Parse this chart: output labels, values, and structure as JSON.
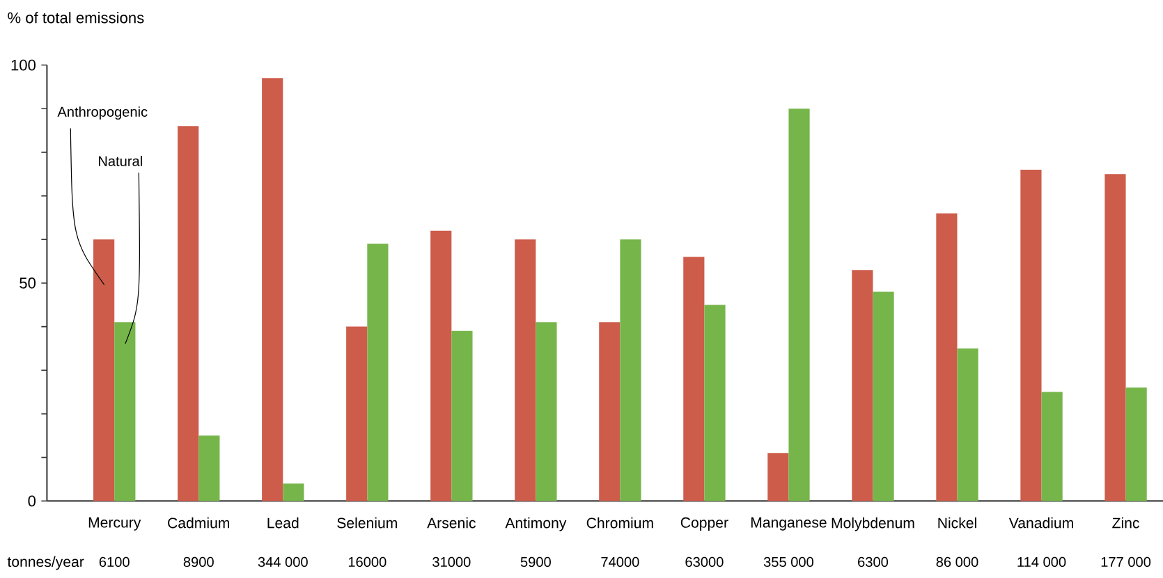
{
  "chart_data": {
    "type": "bar",
    "ylabel": "% of total emissions",
    "categories": [
      "Mercury",
      "Cadmium",
      "Lead",
      "Selenium",
      "Arsenic",
      "Antimony",
      "Chromium",
      "Copper",
      "Manganese",
      "Molybdenum",
      "Nickel",
      "Vanadium",
      "Zinc"
    ],
    "series": [
      {
        "name": "Anthropogenic",
        "color": "#cd5c4a",
        "values": [
          60,
          86,
          97,
          40,
          62,
          60,
          41,
          56,
          11,
          53,
          66,
          76,
          75
        ]
      },
      {
        "name": "Natural",
        "color": "#76b54a",
        "values": [
          41,
          15,
          4,
          59,
          39,
          41,
          60,
          45,
          90,
          48,
          35,
          25,
          26
        ]
      }
    ],
    "ylim": [
      0,
      100
    ],
    "yticks": [
      0,
      {
        "value": 10,
        "label": null
      },
      {
        "value": 20,
        "label": null
      },
      {
        "value": 30,
        "label": null
      },
      {
        "value": 40,
        "label": null
      },
      50,
      {
        "value": 60,
        "label": null
      },
      {
        "value": 70,
        "label": null
      },
      {
        "value": 80,
        "label": null
      },
      {
        "value": 90,
        "label": null
      },
      100
    ],
    "legend": false,
    "annotations": [
      "tonnes/year",
      "6100",
      "8900",
      "344 000",
      "16000",
      "31000",
      "5900",
      "74000",
      "63000",
      "355 000",
      "6300",
      "86 000",
      "114 000",
      "177 000"
    ]
  }
}
